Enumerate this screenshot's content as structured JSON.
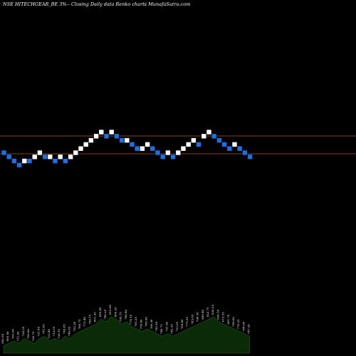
{
  "chart_data": {
    "type": "renko",
    "title": "NSE HITECHGEAR_BE 3%-- Closing Daily data Renko charts MunafaSutra.com",
    "colors": {
      "background": "#000000",
      "up_brick": "#ffffff",
      "down_brick": "#1e6fe6",
      "reference_line": "#b05a1e",
      "volume_fill": "#0b2a07",
      "volume_line": "#1a4a12"
    },
    "reference_lines": [
      738,
      655
    ],
    "bricks": [
      {
        "dir": "down",
        "level": 0
      },
      {
        "dir": "down",
        "level": -1
      },
      {
        "dir": "down",
        "level": -2
      },
      {
        "dir": "down",
        "level": -3
      },
      {
        "dir": "up",
        "level": -2
      },
      {
        "dir": "down",
        "level": -2
      },
      {
        "dir": "up",
        "level": -1
      },
      {
        "dir": "up",
        "level": 0
      },
      {
        "dir": "down",
        "level": -1
      },
      {
        "dir": "up",
        "level": -1
      },
      {
        "dir": "down",
        "level": -2
      },
      {
        "dir": "up",
        "level": -1
      },
      {
        "dir": "down",
        "level": -2
      },
      {
        "dir": "up",
        "level": -1
      },
      {
        "dir": "up",
        "level": 0
      },
      {
        "dir": "up",
        "level": 1
      },
      {
        "dir": "up",
        "level": 2
      },
      {
        "dir": "up",
        "level": 3
      },
      {
        "dir": "up",
        "level": 4
      },
      {
        "dir": "up",
        "level": 5
      },
      {
        "dir": "down",
        "level": 4
      },
      {
        "dir": "up",
        "level": 5
      },
      {
        "dir": "down",
        "level": 4
      },
      {
        "dir": "down",
        "level": 3
      },
      {
        "dir": "up",
        "level": 3
      },
      {
        "dir": "down",
        "level": 2
      },
      {
        "dir": "down",
        "level": 1
      },
      {
        "dir": "up",
        "level": 1
      },
      {
        "dir": "up",
        "level": 2
      },
      {
        "dir": "down",
        "level": 1
      },
      {
        "dir": "down",
        "level": 0
      },
      {
        "dir": "down",
        "level": -1
      },
      {
        "dir": "up",
        "level": 0
      },
      {
        "dir": "down",
        "level": -1
      },
      {
        "dir": "up",
        "level": 0
      },
      {
        "dir": "up",
        "level": 1
      },
      {
        "dir": "up",
        "level": 2
      },
      {
        "dir": "up",
        "level": 3
      },
      {
        "dir": "down",
        "level": 2
      },
      {
        "dir": "up",
        "level": 4
      },
      {
        "dir": "up",
        "level": 5
      },
      {
        "dir": "down",
        "level": 4
      },
      {
        "dir": "down",
        "level": 3
      },
      {
        "dir": "down",
        "level": 2
      },
      {
        "dir": "down",
        "level": 1
      },
      {
        "dir": "up",
        "level": 2
      },
      {
        "dir": "down",
        "level": 1
      },
      {
        "dir": "down",
        "level": 0
      },
      {
        "dir": "down",
        "level": -1
      }
    ],
    "volume": [
      3,
      4,
      5,
      4,
      6,
      5,
      4,
      6,
      7,
      5,
      6,
      5,
      7,
      6,
      8,
      9,
      10,
      11,
      12,
      14,
      13,
      15,
      14,
      12,
      13,
      11,
      10,
      9,
      10,
      9,
      8,
      7,
      8,
      7,
      8,
      9,
      10,
      11,
      12,
      13,
      14,
      15,
      13,
      12,
      11,
      10,
      9,
      8,
      7
    ],
    "volume_labels": [
      "682.95",
      "695.50",
      "703.50",
      "711.95",
      "724.25",
      "700.80",
      "720.75",
      "731.45",
      "741.65",
      "723.40",
      "733.05",
      "738.10",
      "749.85",
      "740.85",
      "752.20",
      "760.75",
      "772.40",
      "790.15",
      "801.30",
      "810.45",
      "798.25",
      "816.90",
      "806.35",
      "795.15",
      "788.40",
      "776.10",
      "765.25",
      "758.40",
      "769.90",
      "760.30",
      "750.95",
      "740.75",
      "731.90",
      "742.35",
      "753.05",
      "764.80",
      "775.55",
      "785.65",
      "796.30",
      "808.40",
      "822.75",
      "836.35",
      "828.10",
      "815.55",
      "801.70",
      "789.60",
      "776.25",
      "764.00",
      "747.20"
    ]
  }
}
